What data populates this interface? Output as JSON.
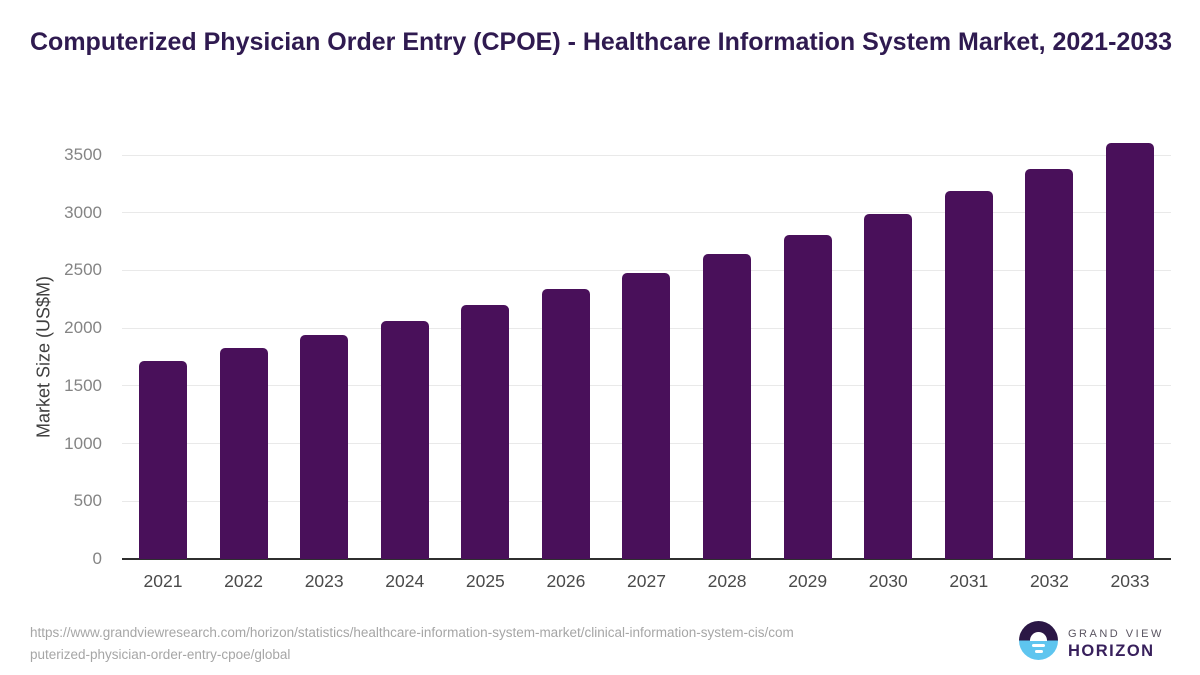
{
  "title": "Computerized Physician Order Entry (CPOE) - Healthcare Information System Market, 2021-2033",
  "chart_data": {
    "type": "bar",
    "categories": [
      "2021",
      "2022",
      "2023",
      "2024",
      "2025",
      "2026",
      "2027",
      "2028",
      "2029",
      "2030",
      "2031",
      "2032",
      "2033"
    ],
    "values": [
      1715,
      1825,
      1940,
      2065,
      2200,
      2335,
      2480,
      2645,
      2810,
      2990,
      3185,
      3380,
      3600
    ],
    "title": "Computerized Physician Order Entry (CPOE) - Healthcare Information System Market, 2021-2033",
    "xlabel": "",
    "ylabel": "Market Size (US$M)",
    "ylim": [
      0,
      3500
    ],
    "yticks": [
      0,
      500,
      1000,
      1500,
      2000,
      2500,
      3000,
      3500
    ],
    "grid": "horizontal",
    "legend": "none",
    "bar_color": "#49105a"
  },
  "footer": {
    "source_lines": [
      "https://www.grandviewresearch.com/horizon/statistics/healthcare-information-system-market/clinical-information-system-cis/com",
      "puterized-physician-order-entry-cpoe/global"
    ],
    "logo": {
      "top_text": "GRAND VIEW",
      "bottom_text": "HORIZON"
    }
  },
  "colors": {
    "title": "#2f1a50",
    "bar": "#49105a",
    "gridline": "#e9e9e9",
    "axis_line": "#2f2f2f",
    "y_tick": "#848484",
    "x_tick": "#4a4a4a",
    "source_text": "#a6a6a6",
    "logo_purple": "#2b1745",
    "logo_blue": "#5ec5ef",
    "logo_horizon_text": "#38205c"
  }
}
